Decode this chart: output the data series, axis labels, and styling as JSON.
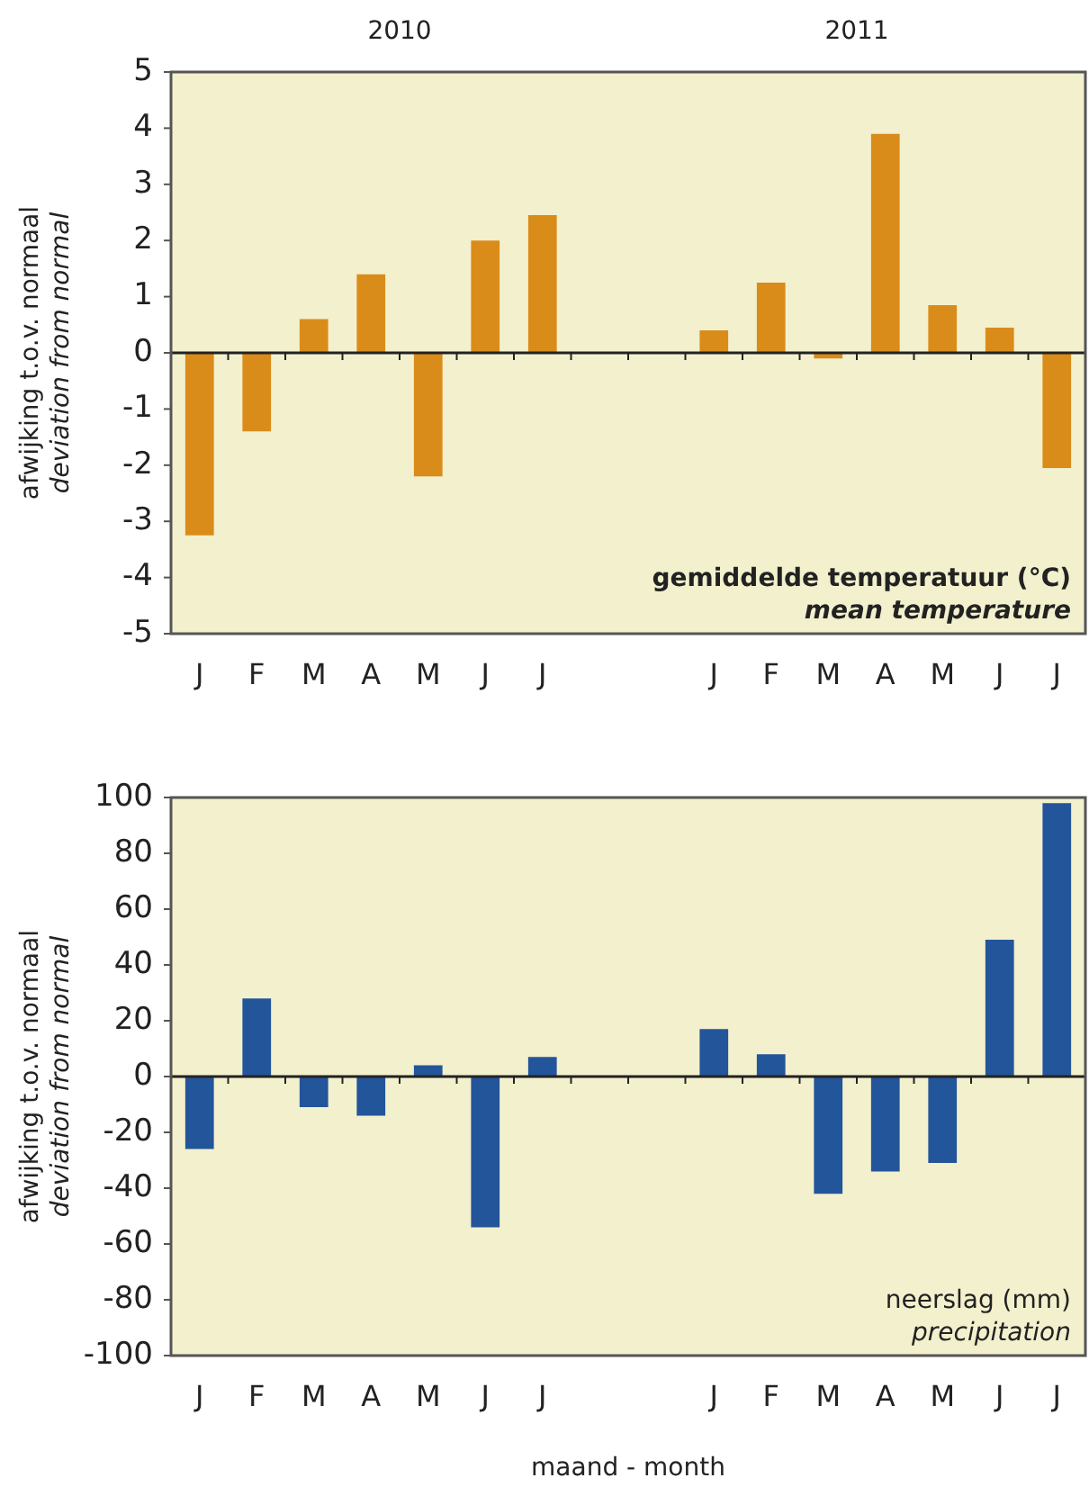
{
  "chart_data": [
    {
      "type": "bar",
      "ylabel": "afwijking t.o.v. normaal\ndeviation from normal",
      "categories": [
        "J",
        "F",
        "M",
        "A",
        "M",
        "J",
        "J",
        null,
        null,
        "J",
        "F",
        "M",
        "A",
        "M",
        "J",
        "J"
      ],
      "series": [
        {
          "color": "#da8c1a",
          "values": [
            -3.25,
            -1.4,
            0.6,
            1.4,
            -2.2,
            2.0,
            2.45,
            null,
            null,
            0.4,
            1.25,
            -0.1,
            3.9,
            0.85,
            0.45,
            -2.05
          ]
        }
      ],
      "ref_lines": [
        {
          "axis": "y",
          "value": 0,
          "color": "#222222"
        }
      ],
      "ylim": [
        -5,
        5
      ],
      "yticks": [
        -5,
        -4,
        -3,
        -2,
        -1,
        0,
        1,
        2,
        3,
        4,
        5
      ],
      "grid": false,
      "legend": false,
      "annotations": [
        "2010",
        "2011",
        "gemiddelde temperatuur (°C)",
        "mean temperature"
      ]
    },
    {
      "type": "bar",
      "ylabel": "afwijking t.o.v. normaal\ndeviation from normal",
      "xlabel": "maand - month",
      "categories": [
        "J",
        "F",
        "M",
        "A",
        "M",
        "J",
        "J",
        null,
        null,
        "J",
        "F",
        "M",
        "A",
        "M",
        "J",
        "J"
      ],
      "series": [
        {
          "color": "#23559a",
          "values": [
            -26,
            28,
            -11,
            -14,
            4,
            -54,
            7,
            null,
            null,
            17,
            8,
            -42,
            -34,
            -31,
            49,
            98
          ]
        }
      ],
      "ref_lines": [
        {
          "axis": "y",
          "value": 0,
          "color": "#222222"
        }
      ],
      "ylim": [
        -100,
        100
      ],
      "yticks": [
        -100,
        -80,
        -60,
        -40,
        -20,
        0,
        20,
        40,
        60,
        80,
        100
      ],
      "grid": false,
      "legend": false,
      "annotations": [
        "neerslag (mm)",
        "precipitation"
      ]
    }
  ]
}
